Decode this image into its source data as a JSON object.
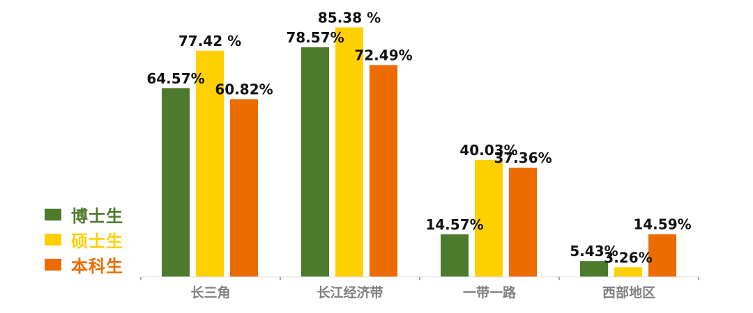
{
  "chart_data": {
    "type": "bar",
    "categories": [
      "长三角",
      "长江经济带",
      "一带一路",
      "西部地区"
    ],
    "series": [
      {
        "name": "博士生",
        "color": "#4d7a2c",
        "values": [
          64.57,
          78.57,
          14.57,
          5.43
        ],
        "labels": [
          "64.57%",
          "78.57%",
          "14.57%",
          "5.43%"
        ]
      },
      {
        "name": "硕士生",
        "color": "#fed000",
        "values": [
          77.42,
          85.38,
          40.03,
          3.26
        ],
        "labels": [
          "77.42 %",
          "85.38 %",
          "40.03%",
          "3.26%"
        ]
      },
      {
        "name": "本科生",
        "color": "#ec6c00",
        "values": [
          60.82,
          72.49,
          37.36,
          14.59
        ],
        "labels": [
          "60.82%",
          "72.49%",
          "37.36%",
          "14.59%"
        ]
      }
    ],
    "ylim": [
      0,
      100
    ],
    "grid": false,
    "legend_position": "left"
  }
}
